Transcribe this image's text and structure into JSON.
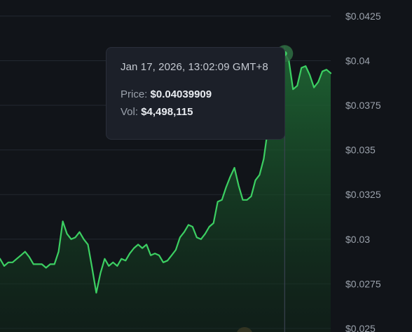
{
  "colors": {
    "background": "#111419",
    "line": "#3ccf62",
    "area_top": "#1c5a2e",
    "grid": "#232831",
    "crosshair": "#3a4250",
    "marker": "#2f6e43"
  },
  "tooltip": {
    "time": "Jan 17, 2026, 13:02:09 GMT+8",
    "price_label": "Price:",
    "price_value": "$0.04039909",
    "vol_label": "Vol:",
    "vol_value": "$4,498,115"
  },
  "chart_data": {
    "type": "area",
    "y_axis_position": "right",
    "ylim": [
      0.0248,
      0.0434
    ],
    "yticks": [
      {
        "value": 0.0425,
        "label": "$0.0425"
      },
      {
        "value": 0.04,
        "label": "$0.04"
      },
      {
        "value": 0.0375,
        "label": "$0.0375"
      },
      {
        "value": 0.035,
        "label": "$0.035"
      },
      {
        "value": 0.0325,
        "label": "$0.0325"
      },
      {
        "value": 0.03,
        "label": "$0.03"
      },
      {
        "value": 0.0275,
        "label": "$0.0275"
      },
      {
        "value": 0.025,
        "label": "$0.025"
      }
    ],
    "grid": true,
    "highlighted_index": 68,
    "values": [
      0.0289,
      0.0285,
      0.0287,
      0.0287,
      0.0289,
      0.0291,
      0.0293,
      0.029,
      0.0286,
      0.0286,
      0.0286,
      0.0284,
      0.0286,
      0.0286,
      0.0293,
      0.031,
      0.0303,
      0.03,
      0.0301,
      0.0304,
      0.03,
      0.0297,
      0.0284,
      0.027,
      0.0281,
      0.0289,
      0.0285,
      0.0287,
      0.0285,
      0.0289,
      0.0288,
      0.0292,
      0.0295,
      0.0297,
      0.0295,
      0.0297,
      0.0291,
      0.0292,
      0.0291,
      0.0287,
      0.0288,
      0.0291,
      0.0294,
      0.0301,
      0.0304,
      0.0308,
      0.0307,
      0.0301,
      0.03,
      0.0303,
      0.0307,
      0.0309,
      0.0321,
      0.0322,
      0.0329,
      0.0335,
      0.034,
      0.033,
      0.0322,
      0.0322,
      0.0324,
      0.0333,
      0.0336,
      0.0345,
      0.0362,
      0.0362,
      0.0366,
      0.0384,
      0.0404,
      0.04,
      0.0384,
      0.0386,
      0.0396,
      0.0397,
      0.0392,
      0.0385,
      0.0388,
      0.0394,
      0.0395,
      0.0393
    ]
  }
}
